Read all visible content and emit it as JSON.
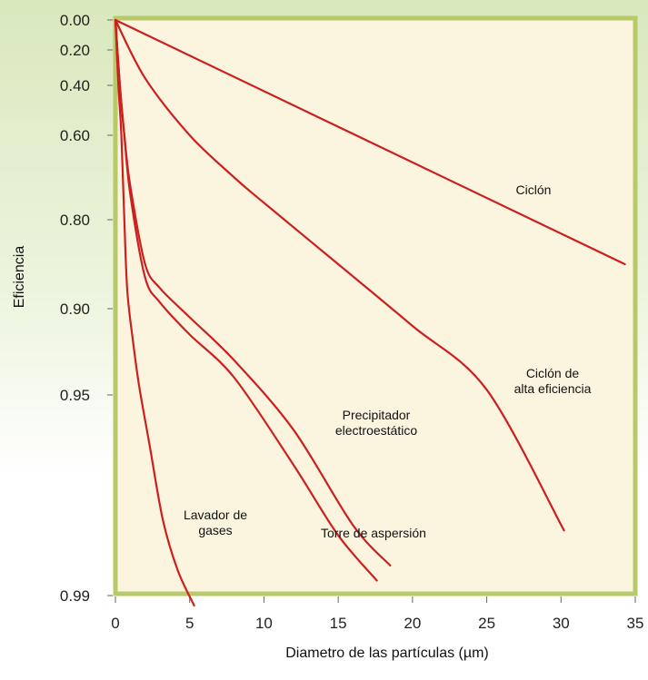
{
  "chart_data": {
    "type": "line",
    "title": "",
    "xlabel": "Diametro de las partículas (µm)",
    "ylabel": "Eficiencia",
    "xlim": [
      0,
      35
    ],
    "x_ticks": [
      "0",
      "5",
      "10",
      "15",
      "20",
      "25",
      "30",
      "35"
    ],
    "y_ticks": [
      "0.00",
      "0.20",
      "0.40",
      "0.60",
      "0.80",
      "0.90",
      "0.95",
      "0.99"
    ],
    "y_scale": "nonlinear (as printed)",
    "grid": false,
    "legend": "none (curves labeled directly)",
    "colors": {
      "line": "#cc1f1f",
      "plot_background": "#fbf5df",
      "plot_border": "#b8c96a",
      "page_background_top": "#dbe9bf"
    },
    "series": [
      {
        "name": "Ciclón",
        "label_lines": [
          "Ciclón"
        ],
        "points": [
          [
            0,
            0.0
          ],
          [
            34.3,
            0.85
          ]
        ]
      },
      {
        "name": "Ciclón de alta eficiencia",
        "label_lines": [
          "Ciclón de",
          "alta eficiencia"
        ],
        "points": [
          [
            0,
            0.0
          ],
          [
            2,
            0.36
          ],
          [
            5,
            0.6
          ],
          [
            8,
            0.7
          ],
          [
            10,
            0.76
          ],
          [
            15,
            0.85
          ],
          [
            20,
            0.91
          ],
          [
            25,
            0.947
          ],
          [
            30.2,
            0.977
          ]
        ]
      },
      {
        "name": "Precipitador electroestático",
        "label_lines": [
          "Precipitador",
          "electroestático"
        ],
        "points": [
          [
            0,
            0.0
          ],
          [
            0.3,
            0.4
          ],
          [
            0.6,
            0.6
          ],
          [
            1,
            0.72
          ],
          [
            2,
            0.85
          ],
          [
            3,
            0.877
          ],
          [
            5,
            0.905
          ],
          [
            8,
            0.93
          ],
          [
            12,
            0.957
          ],
          [
            16,
            0.976
          ],
          [
            18.5,
            0.984
          ]
        ]
      },
      {
        "name": "Torre de aspersión",
        "label_lines": [
          "Torre de aspersión"
        ],
        "points": [
          [
            0,
            0.0
          ],
          [
            0.3,
            0.4
          ],
          [
            0.6,
            0.6
          ],
          [
            1,
            0.74
          ],
          [
            2,
            0.865
          ],
          [
            3,
            0.893
          ],
          [
            5,
            0.915
          ],
          [
            8,
            0.94
          ],
          [
            12,
            0.964
          ],
          [
            15,
            0.978
          ],
          [
            17.6,
            0.987
          ]
        ]
      },
      {
        "name": "Lavador de gases",
        "label_lines": [
          "Lavador de",
          "gases"
        ],
        "points": [
          [
            0,
            0.0
          ],
          [
            0.2,
            0.4
          ],
          [
            0.4,
            0.6
          ],
          [
            0.6,
            0.8
          ],
          [
            0.8,
            0.88
          ],
          [
            1.2,
            0.92
          ],
          [
            1.6,
            0.945
          ],
          [
            2.3,
            0.96
          ],
          [
            3.2,
            0.975
          ],
          [
            4.2,
            0.985
          ],
          [
            5.3,
            0.992
          ]
        ]
      }
    ]
  }
}
